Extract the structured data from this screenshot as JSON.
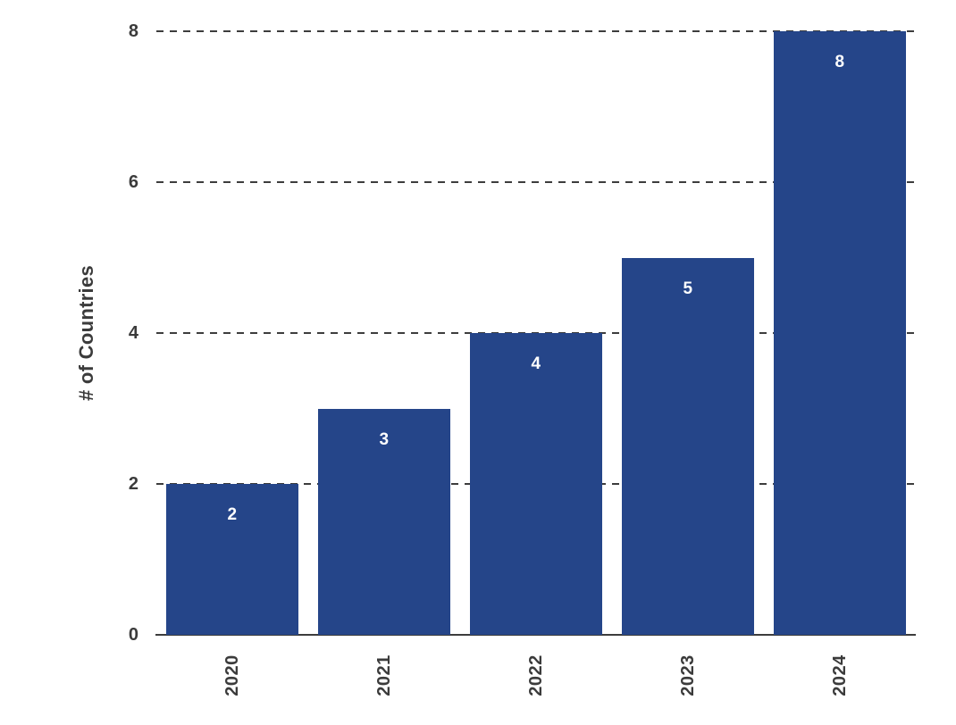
{
  "chart_data": {
    "type": "bar",
    "title": "",
    "xlabel": "",
    "ylabel": "# of Countries",
    "categories": [
      "2020",
      "2021",
      "2022",
      "2023",
      "2024"
    ],
    "values": [
      2,
      3,
      4,
      5,
      8
    ],
    "bar_labels": [
      "2",
      "3",
      "4",
      "5",
      "8"
    ],
    "yticks": [
      "0",
      "2",
      "4",
      "6",
      "8"
    ],
    "ytick_values": [
      0,
      2,
      4,
      6,
      8
    ],
    "ylim": [
      0,
      8
    ],
    "grid": "horizontal dashed gridlines at y = 2, 4, 6, 8; drawn under bars",
    "legend": "none",
    "colors": {
      "bar": "#254589",
      "bar_label": "#ffffff",
      "axis_text": "#3b3b3b",
      "gridline": "#3d3d3d",
      "axis_line": "#3d3d3d",
      "background": "#ffffff"
    }
  }
}
